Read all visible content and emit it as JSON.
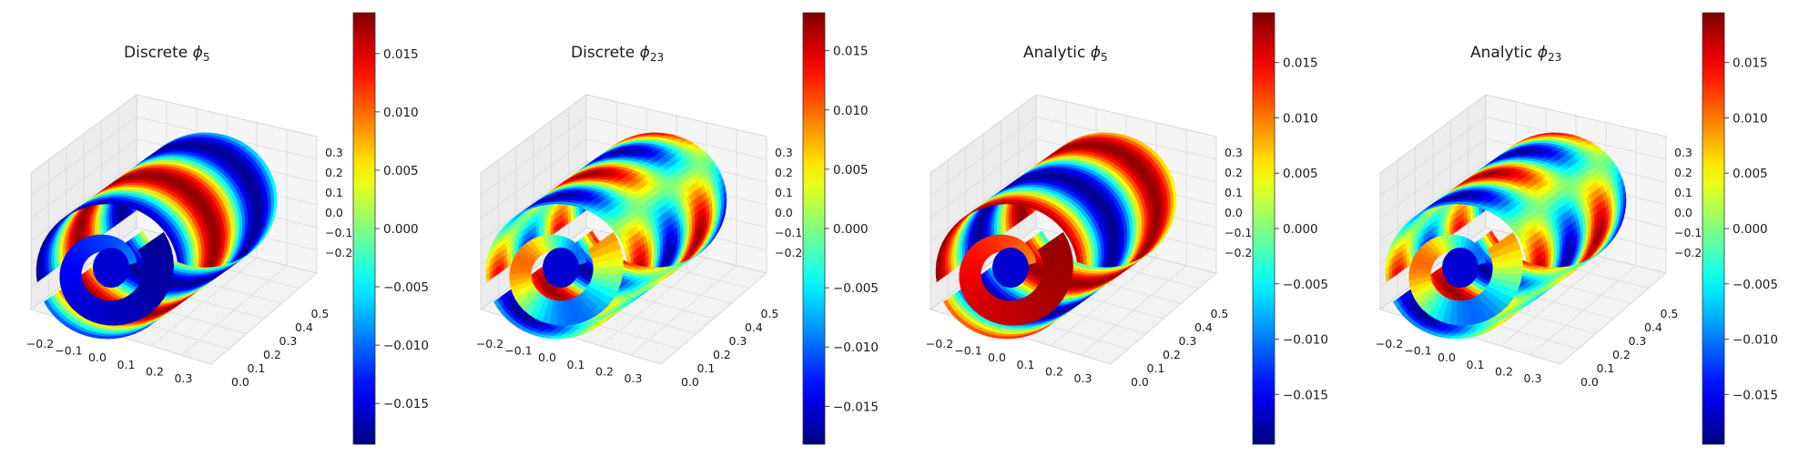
{
  "chart_data": [
    {
      "type": "surface3d",
      "title": {
        "prefix": "Discrete",
        "symbol": "ϕ",
        "subscript": "5"
      },
      "x_ticks": [
        "−0.2",
        "−0.1",
        "0.0",
        "0.1",
        "0.2",
        "0.3"
      ],
      "y_ticks": [
        "0.0",
        "0.1",
        "0.2",
        "0.3",
        "0.4",
        "0.5"
      ],
      "z_ticks": [
        "0.3",
        "0.2",
        "0.1",
        "0.0",
        "−0.1",
        "−0.2"
      ],
      "colorbar": {
        "colormap": "jet",
        "min": -0.0185,
        "max": 0.0185,
        "ticks": [
          "0.015",
          "0.010",
          "0.005",
          "0.000",
          "−0.005",
          "−0.010",
          "−0.015"
        ]
      },
      "pattern": "bands5_discrete"
    },
    {
      "type": "surface3d",
      "title": {
        "prefix": "Discrete",
        "symbol": "ϕ",
        "subscript": "23"
      },
      "x_ticks": [
        "−0.2",
        "−0.1",
        "0.0",
        "0.1",
        "0.2",
        "0.3"
      ],
      "y_ticks": [
        "0.0",
        "0.1",
        "0.2",
        "0.3",
        "0.4",
        "0.5"
      ],
      "z_ticks": [
        "0.3",
        "0.2",
        "0.1",
        "0.0",
        "−0.1",
        "−0.2"
      ],
      "colorbar": {
        "colormap": "jet",
        "min": -0.0182,
        "max": 0.0182,
        "ticks": [
          "0.015",
          "0.010",
          "0.005",
          "0.000",
          "−0.005",
          "−0.010",
          "−0.015"
        ]
      },
      "pattern": "checker23"
    },
    {
      "type": "surface3d",
      "title": {
        "prefix": "Analytic",
        "symbol": "ϕ",
        "subscript": "5"
      },
      "x_ticks": [
        "−0.2",
        "−0.1",
        "0.0",
        "0.1",
        "0.2",
        "0.3"
      ],
      "y_ticks": [
        "0.0",
        "0.1",
        "0.2",
        "0.3",
        "0.4",
        "0.5"
      ],
      "z_ticks": [
        "0.3",
        "0.2",
        "0.1",
        "0.0",
        "−0.1",
        "−0.2"
      ],
      "colorbar": {
        "colormap": "jet",
        "min": -0.0195,
        "max": 0.0195,
        "ticks": [
          "0.015",
          "0.010",
          "0.005",
          "0.000",
          "−0.005",
          "−0.010",
          "−0.015"
        ]
      },
      "pattern": "bands5_analytic"
    },
    {
      "type": "surface3d",
      "title": {
        "prefix": "Analytic",
        "symbol": "ϕ",
        "subscript": "23"
      },
      "x_ticks": [
        "−0.2",
        "−0.1",
        "0.0",
        "0.1",
        "0.2",
        "0.3"
      ],
      "y_ticks": [
        "0.0",
        "0.1",
        "0.2",
        "0.3",
        "0.4",
        "0.5"
      ],
      "z_ticks": [
        "0.3",
        "0.2",
        "0.1",
        "0.0",
        "−0.1",
        "−0.2"
      ],
      "colorbar": {
        "colormap": "jet",
        "min": -0.0195,
        "max": 0.0195,
        "ticks": [
          "0.015",
          "0.010",
          "0.005",
          "0.000",
          "−0.005",
          "−0.010",
          "−0.015"
        ]
      },
      "pattern": "checker23"
    }
  ]
}
